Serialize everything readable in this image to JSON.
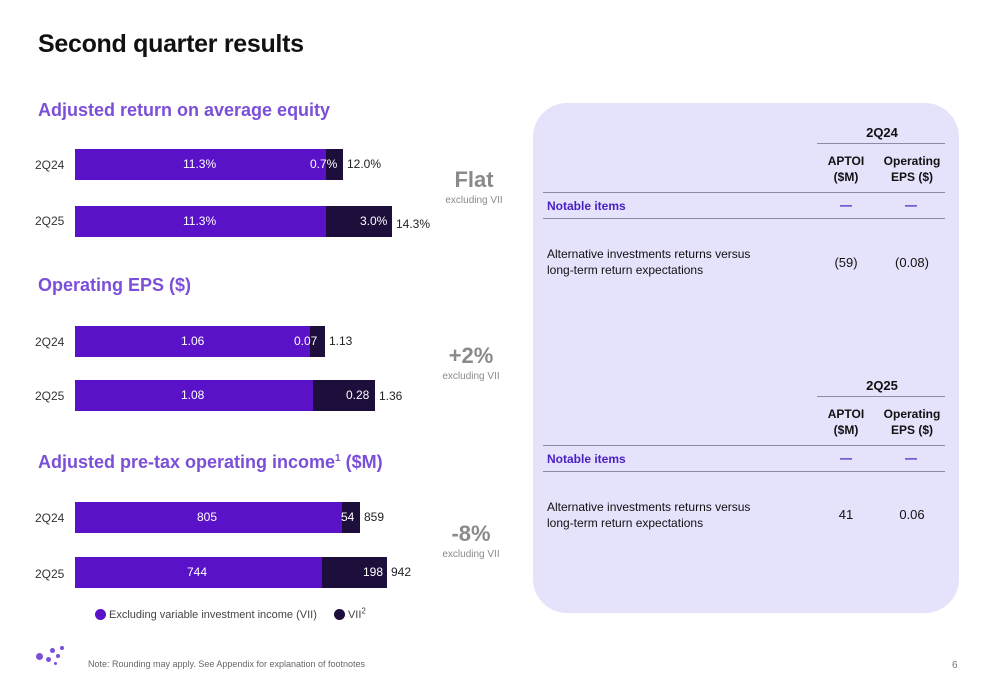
{
  "page": {
    "title": "Second quarter results",
    "footnote": "Note: Rounding may apply. See Appendix for explanation of footnotes",
    "page_number": "6"
  },
  "colors": {
    "exclude_vii": "#5a12c9",
    "vii": "#1d0e3b",
    "panel": "#e5e2fb",
    "accent": "#7b4fd8"
  },
  "sections": [
    {
      "title": "Adjusted return on average equity",
      "delta": "Flat",
      "delta_note": "excluding VII",
      "rows": [
        {
          "cat": "2Q24",
          "a": "11.3%",
          "b": "0.7%",
          "total": "12.0%"
        },
        {
          "cat": "2Q25",
          "a": "11.3%",
          "b": "3.0%",
          "total": "14.3%"
        }
      ]
    },
    {
      "title": "Operating EPS ($)",
      "delta": "+2%",
      "delta_note": "excluding VII",
      "rows": [
        {
          "cat": "2Q24",
          "a": "1.06",
          "b": "0.07",
          "total": "1.13"
        },
        {
          "cat": "2Q25",
          "a": "1.08",
          "b": "0.28",
          "total": "1.36"
        }
      ]
    },
    {
      "title": "Adjusted pre-tax operating income",
      "title_sup": "1",
      "title_suffix": " ($M)",
      "delta": "-8%",
      "delta_note": "excluding VII",
      "rows": [
        {
          "cat": "2Q24",
          "a": "805",
          "b": "54",
          "total": "859"
        },
        {
          "cat": "2Q25",
          "a": "744",
          "b": "198",
          "total": "942"
        }
      ]
    }
  ],
  "legend": {
    "item1": "Excluding variable investment income (VII)",
    "item2": "VII",
    "item2_sup": "2"
  },
  "chart_data": [
    {
      "type": "bar",
      "orientation": "horizontal",
      "stacked": true,
      "title": "Adjusted return on average equity",
      "categories": [
        "2Q24",
        "2Q25"
      ],
      "series": [
        {
          "name": "Excluding variable investment income (VII)",
          "values": [
            11.3,
            11.3
          ]
        },
        {
          "name": "VII",
          "values": [
            0.7,
            3.0
          ]
        }
      ],
      "totals": [
        12.0,
        14.3
      ]
    },
    {
      "type": "bar",
      "orientation": "horizontal",
      "stacked": true,
      "title": "Operating EPS ($)",
      "categories": [
        "2Q24",
        "2Q25"
      ],
      "series": [
        {
          "name": "Excluding variable investment income (VII)",
          "values": [
            1.06,
            1.08
          ]
        },
        {
          "name": "VII",
          "values": [
            0.07,
            0.28
          ]
        }
      ],
      "totals": [
        1.13,
        1.36
      ]
    },
    {
      "type": "bar",
      "orientation": "horizontal",
      "stacked": true,
      "title": "Adjusted pre-tax operating income ($M)",
      "categories": [
        "2Q24",
        "2Q25"
      ],
      "series": [
        {
          "name": "Excluding variable investment income (VII)",
          "values": [
            805,
            744
          ]
        },
        {
          "name": "VII",
          "values": [
            54,
            198
          ]
        }
      ],
      "totals": [
        859,
        942
      ]
    }
  ],
  "tables": [
    {
      "period": "2Q24",
      "col1": "APTOI",
      "col1b": "($M)",
      "col2": "Operating",
      "col2b": "EPS ($)",
      "notable": "Notable items",
      "dash": "—",
      "row_line1": "Alternative investments returns versus",
      "row_line2": "long-term return expectations",
      "aptoi": "(59)",
      "eps": "(0.08)"
    },
    {
      "period": "2Q25",
      "col1": "APTOI",
      "col1b": "($M)",
      "col2": "Operating",
      "col2b": "EPS ($)",
      "notable": "Notable items",
      "dash": "—",
      "row_line1": "Alternative investments returns versus",
      "row_line2": "long-term return expectations",
      "aptoi": "41",
      "eps": "0.06"
    }
  ]
}
